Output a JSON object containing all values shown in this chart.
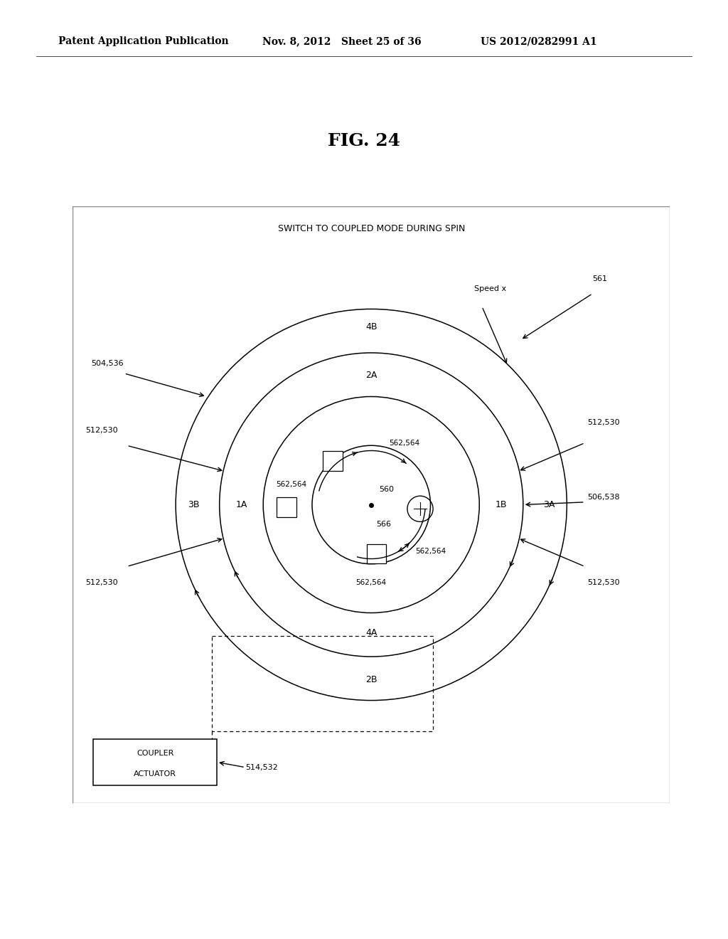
{
  "fig_title": "FIG. 24",
  "header_left": "Patent Application Publication",
  "header_mid": "Nov. 8, 2012   Sheet 25 of 36",
  "header_right": "US 2012/0282991 A1",
  "box_title": "SWITCH TO COUPLED MODE DURING SPIN",
  "radii": [
    0.38,
    0.295,
    0.21,
    0.115
  ],
  "background_color": "#ffffff"
}
